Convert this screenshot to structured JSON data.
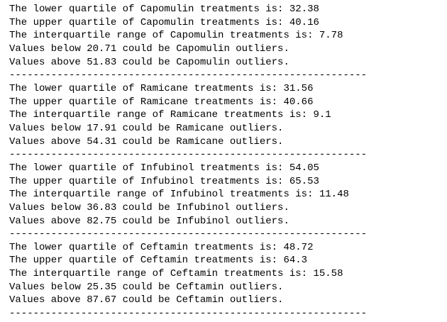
{
  "outputs": [
    {
      "lines": [
        "The lower quartile of Capomulin treatments is: 32.38",
        "The upper quartile of Capomulin treatments is: 40.16",
        "The interquartile range of Capomulin treatments is: 7.78",
        "Values below 20.71 could be Capomulin outliers.",
        "Values above 51.83 could be Capomulin outliers."
      ],
      "separator": "------------------------------------------------------------"
    },
    {
      "lines": [
        "The lower quartile of Ramicane treatments is: 31.56",
        "The upper quartile of Ramicane treatments is: 40.66",
        "The interquartile range of Ramicane treatments is: 9.1",
        "Values below 17.91 could be Ramicane outliers.",
        "Values above 54.31 could be Ramicane outliers."
      ],
      "separator": "------------------------------------------------------------"
    },
    {
      "lines": [
        "The lower quartile of Infubinol treatments is: 54.05",
        "The upper quartile of Infubinol treatments is: 65.53",
        "The interquartile range of Infubinol treatments is: 11.48",
        "Values below 36.83 could be Infubinol outliers.",
        "Values above 82.75 could be Infubinol outliers."
      ],
      "separator": "------------------------------------------------------------"
    },
    {
      "lines": [
        "The lower quartile of Ceftamin treatments is: 48.72",
        "The upper quartile of Ceftamin treatments is: 64.3",
        "The interquartile range of Ceftamin treatments is: 15.58",
        "Values below 25.35 could be Ceftamin outliers.",
        "Values above 87.67 could be Ceftamin outliers."
      ],
      "separator": "------------------------------------------------------------"
    }
  ]
}
